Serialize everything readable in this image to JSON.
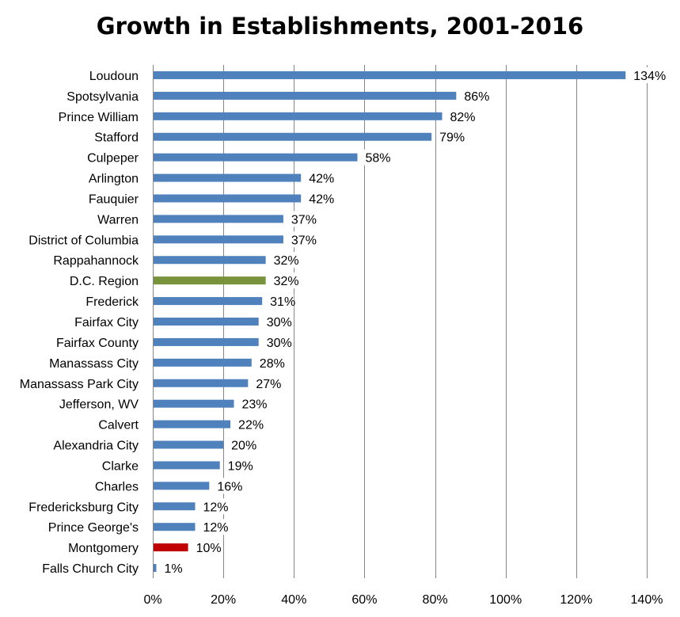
{
  "chart_data": {
    "type": "bar",
    "orientation": "horizontal",
    "title": "Growth in Establishments, 2001-2016",
    "xlabel": "",
    "ylabel": "",
    "xlim": [
      0,
      1.4
    ],
    "x_ticks": [
      0,
      0.2,
      0.4,
      0.6,
      0.8,
      1.0,
      1.2,
      1.4
    ],
    "x_tick_labels": [
      "0%",
      "20%",
      "40%",
      "60%",
      "80%",
      "100%",
      "120%",
      "140%"
    ],
    "grid": "vertical",
    "legend": "none",
    "categories": [
      "Loudoun",
      "Spotsylvania",
      "Prince William",
      "Stafford",
      "Culpeper",
      "Arlington",
      "Fauquier",
      "Warren",
      "District of Columbia",
      "Rappahannock",
      "D.C. Region",
      "Frederick",
      "Fairfax City",
      "Fairfax County",
      "Manassass City",
      "Manassass Park City",
      "Jefferson, WV",
      "Calvert",
      "Alexandria City",
      "Clarke",
      "Charles",
      "Fredericksburg City",
      "Prince George's",
      "Montgomery",
      "Falls Church City"
    ],
    "values": [
      1.34,
      0.86,
      0.82,
      0.79,
      0.58,
      0.42,
      0.42,
      0.37,
      0.37,
      0.32,
      0.32,
      0.31,
      0.3,
      0.3,
      0.28,
      0.27,
      0.23,
      0.22,
      0.2,
      0.19,
      0.16,
      0.12,
      0.12,
      0.1,
      0.01
    ],
    "value_labels": [
      "134%",
      "86%",
      "82%",
      "79%",
      "58%",
      "42%",
      "42%",
      "37%",
      "37%",
      "32%",
      "32%",
      "31%",
      "30%",
      "30%",
      "28%",
      "27%",
      "23%",
      "22%",
      "20%",
      "19%",
      "16%",
      "12%",
      "12%",
      "10%",
      "1%"
    ],
    "colors": {
      "default": "#4F81BD",
      "highlight_region": "#77933C",
      "highlight_focus": "#C00000",
      "grid": "#868686",
      "axis": "#868686"
    },
    "highlights": {
      "D.C. Region": "highlight_region",
      "Montgomery": "highlight_focus"
    }
  }
}
